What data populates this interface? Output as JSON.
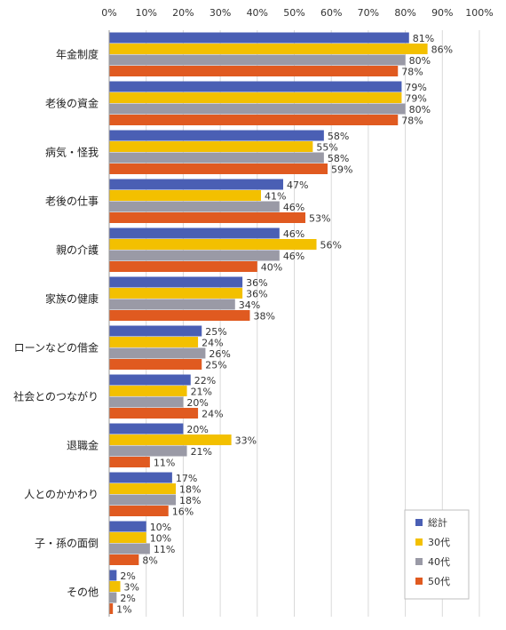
{
  "chart_data": {
    "type": "bar",
    "orientation": "horizontal",
    "title": "",
    "xlabel": "",
    "ylabel": "",
    "xlim": [
      0,
      100
    ],
    "x_ticks": [
      "0%",
      "10%",
      "20%",
      "30%",
      "40%",
      "50%",
      "60%",
      "70%",
      "80%",
      "90%",
      "100%"
    ],
    "x_tick_values": [
      0,
      10,
      20,
      30,
      40,
      50,
      60,
      70,
      80,
      90,
      100
    ],
    "value_suffix": "%",
    "grid": true,
    "legend_position": "bottom-right",
    "categories": [
      "年金制度",
      "老後の資金",
      "病気・怪我",
      "老後の仕事",
      "親の介護",
      "家族の健康",
      "ローンなどの借金",
      "社会とのつながり",
      "退職金",
      "人とのかかわり",
      "子・孫の面倒",
      "その他"
    ],
    "series": [
      {
        "name": "総計",
        "color": "#4a5fb4",
        "values": [
          81,
          79,
          58,
          47,
          46,
          36,
          25,
          22,
          20,
          17,
          10,
          2
        ]
      },
      {
        "name": "30代",
        "color": "#f3c000",
        "values": [
          86,
          79,
          55,
          41,
          56,
          36,
          24,
          21,
          33,
          18,
          10,
          3
        ]
      },
      {
        "name": "40代",
        "color": "#9a9aa6",
        "values": [
          80,
          80,
          58,
          46,
          46,
          34,
          26,
          20,
          21,
          18,
          11,
          2
        ]
      },
      {
        "name": "50代",
        "color": "#e05a20",
        "values": [
          78,
          78,
          59,
          53,
          40,
          38,
          25,
          24,
          11,
          16,
          8,
          1
        ]
      }
    ]
  }
}
